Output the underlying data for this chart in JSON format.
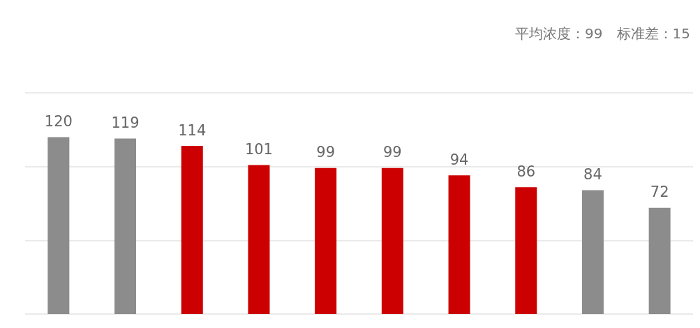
{
  "chart_data": {
    "type": "bar",
    "categories": [
      null,
      null,
      null,
      null,
      null,
      null,
      null,
      null,
      null,
      null
    ],
    "values": [
      120,
      119,
      114,
      101,
      99,
      99,
      94,
      86,
      84,
      72
    ],
    "colors": [
      "#8c8c8c",
      "#8c8c8c",
      "#cc0000",
      "#cc0000",
      "#cc0000",
      "#cc0000",
      "#cc0000",
      "#cc0000",
      "#8c8c8c",
      "#8c8c8c"
    ],
    "ylim": [
      0,
      150
    ],
    "yticks": [
      {
        "value": 0,
        "label": null
      },
      {
        "value": 50,
        "label": null
      },
      {
        "value": 100,
        "label": null
      },
      {
        "value": 150,
        "label": null
      }
    ],
    "grid": "y",
    "data_labels": true,
    "annotations": [
      "平均浓度：99　标准差：15"
    ]
  }
}
